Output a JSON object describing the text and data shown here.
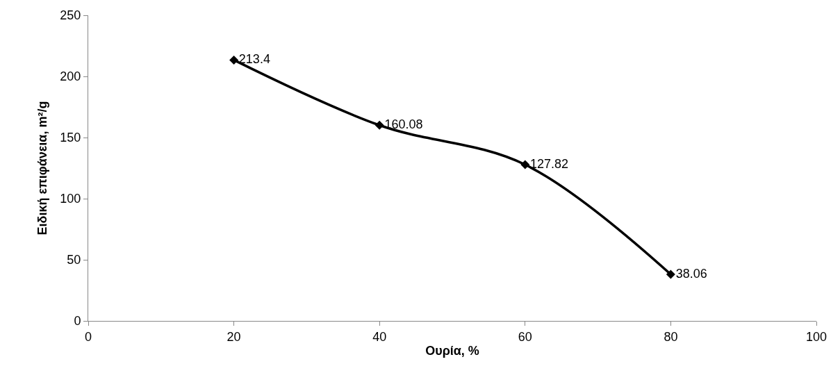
{
  "chart_data": {
    "type": "line",
    "xlabel": "Ουρία, %",
    "ylabel": "Ειδική επιφάνεια, m²/g",
    "x": [
      20,
      40,
      60,
      80
    ],
    "series": [
      {
        "color": "#000000",
        "values": [
          213.4,
          160.08,
          127.82,
          38.06
        ]
      }
    ],
    "xlim": [
      0,
      100
    ],
    "xticks": [
      0,
      20,
      40,
      60,
      80,
      100
    ],
    "ylim": [
      0,
      250
    ],
    "yticks": [
      0,
      50,
      100,
      150,
      200,
      250
    ],
    "marker": "diamond",
    "line_style": "solid",
    "data_labels": true
  }
}
